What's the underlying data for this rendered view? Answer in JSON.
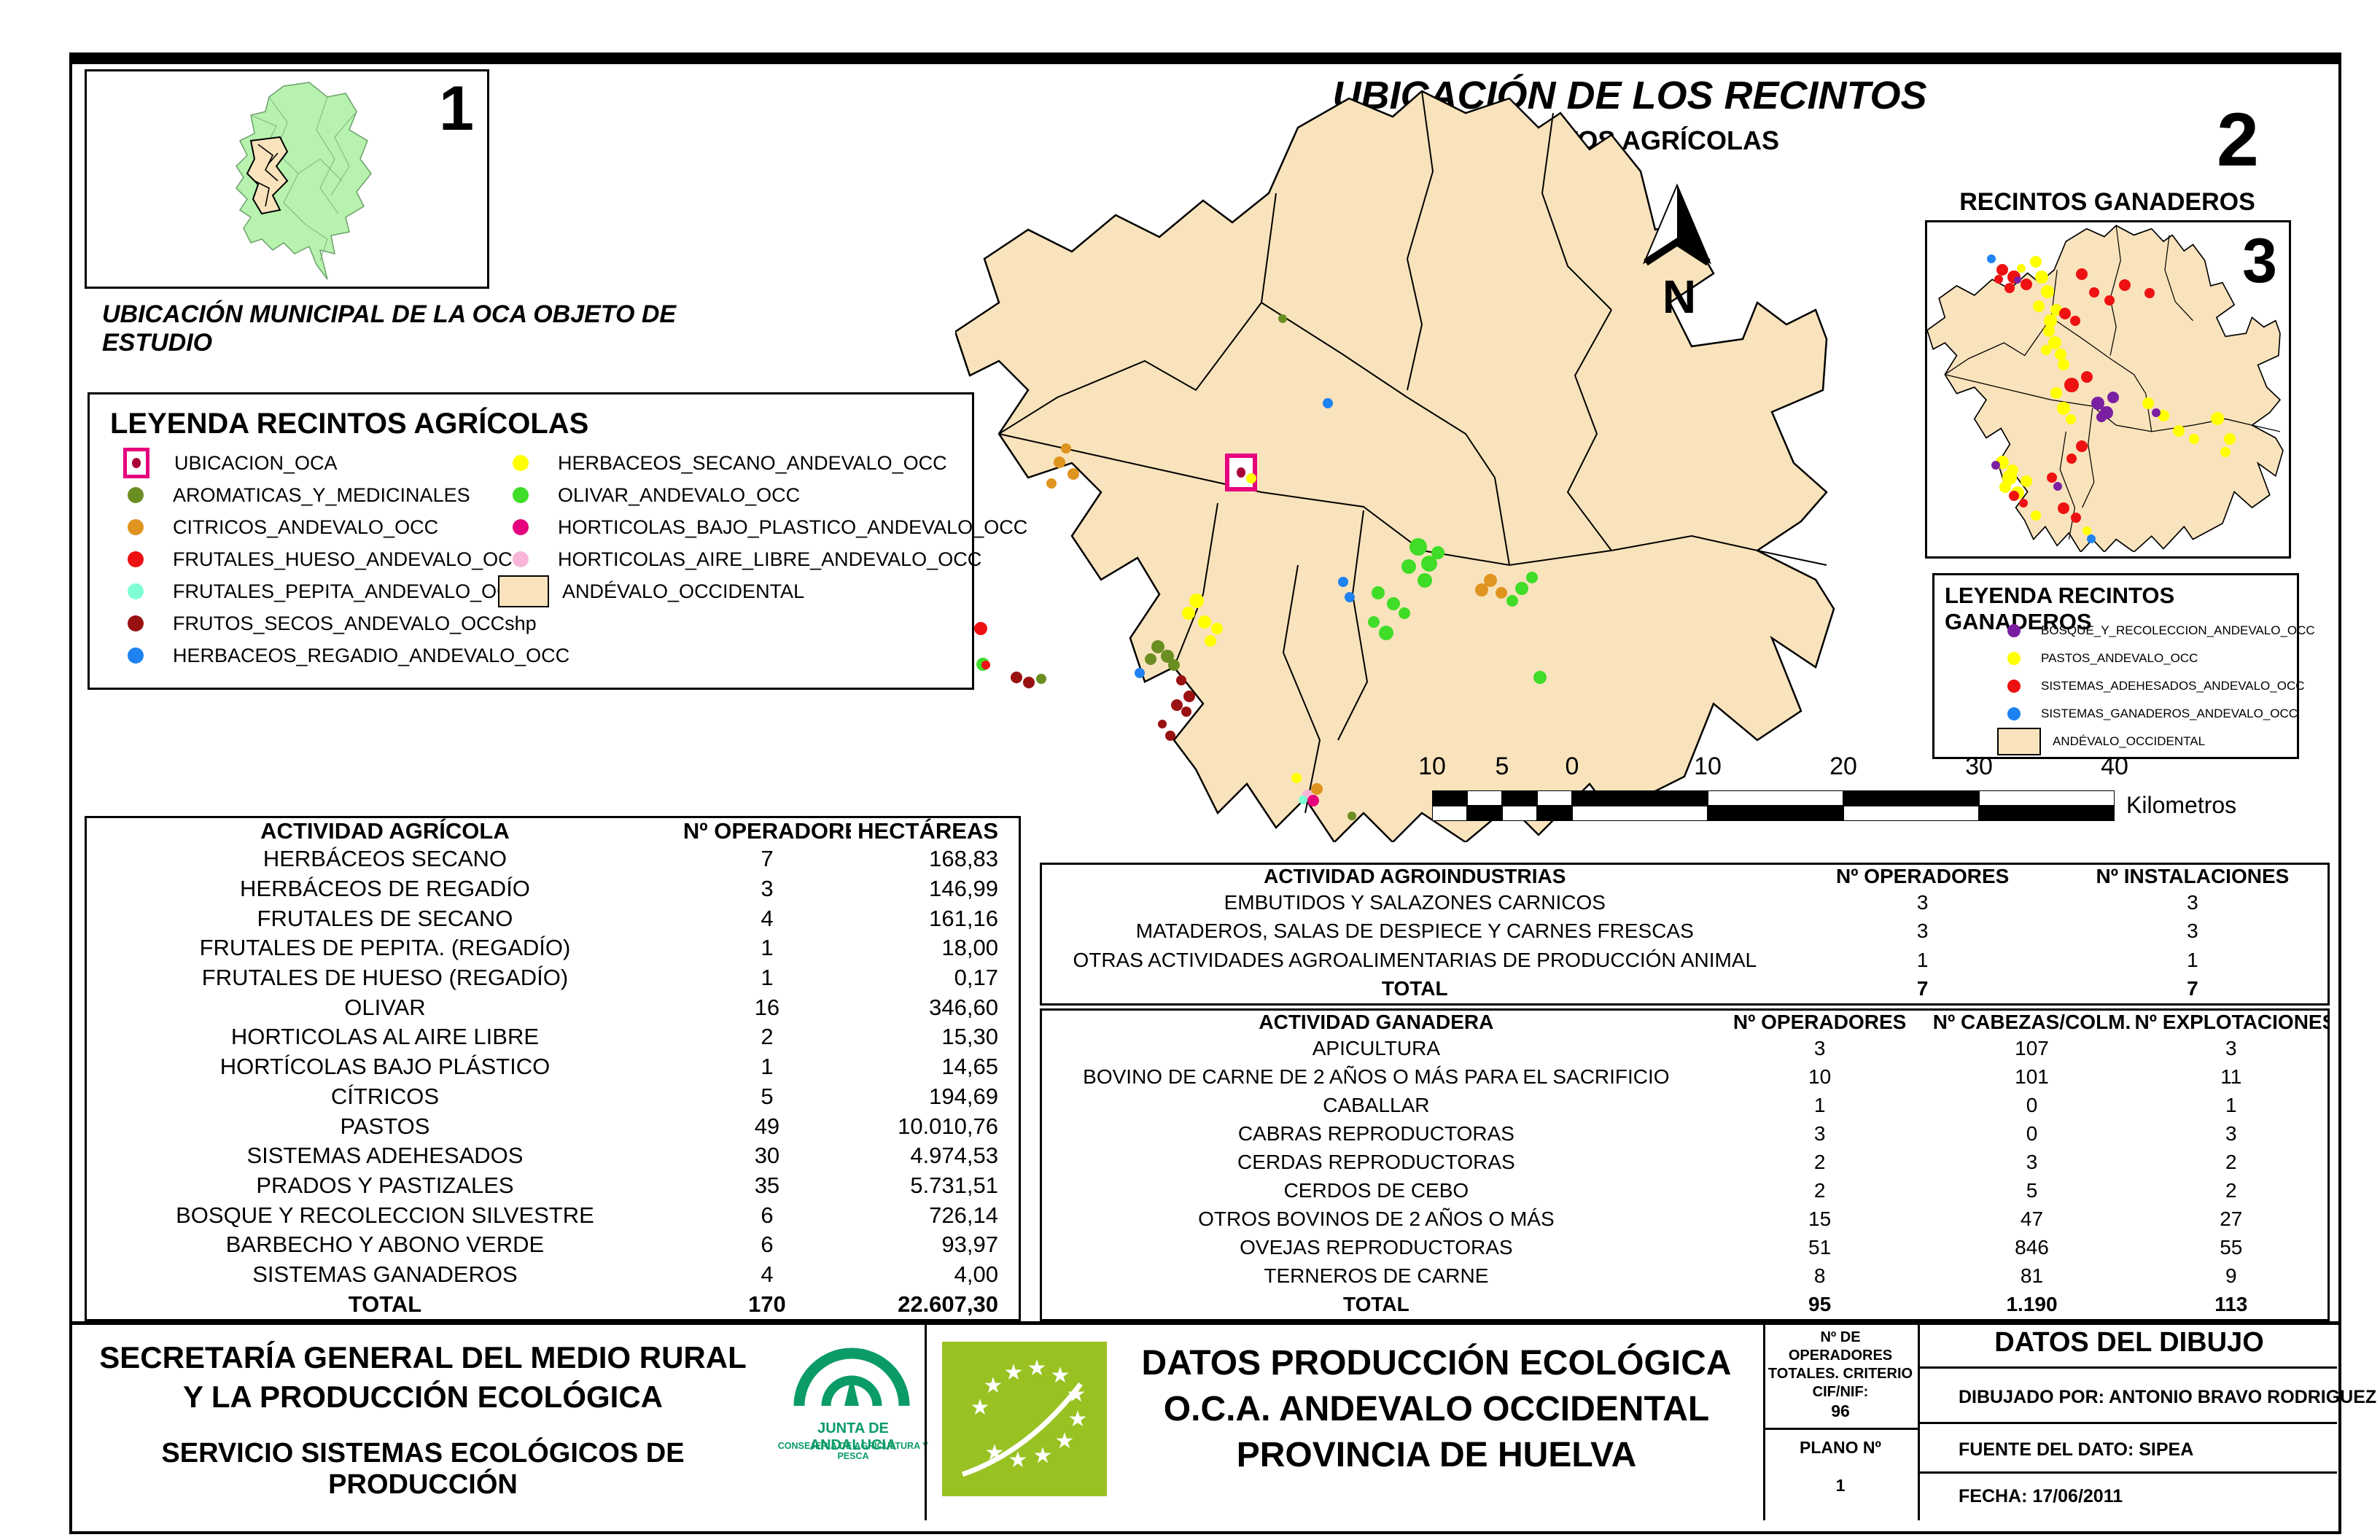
{
  "inset": {
    "numeral": "1",
    "caption": "UBICACIÓN MUNICIPAL DE LA OCA OBJETO DE ESTUDIO"
  },
  "main_map": {
    "numeral": "2",
    "title": "UBICACIÓN DE LOS RECINTOS",
    "subtitle": "RECINTOS AGRÍCOLAS",
    "north_label": "N"
  },
  "ganaderos_map": {
    "numeral": "3",
    "title": "RECINTOS GANADEROS"
  },
  "legend_agricolas": {
    "title": "LEYENDA RECINTOS AGRÍCOLAS",
    "items_left": [
      {
        "label": "UBICACION_OCA",
        "shape": "oca",
        "color": "#E6007E"
      },
      {
        "label": "AROMATICAS_Y_MEDICINALES",
        "shape": "dot",
        "color": "#6B8E23"
      },
      {
        "label": "CITRICOS_ANDEVALO_OCC",
        "shape": "dot",
        "color": "#E09420"
      },
      {
        "label": "FRUTALES_HUESO_ANDEVALO_OCC",
        "shape": "dot",
        "color": "#EE1111"
      },
      {
        "label": "FRUTALES_PEPITA_ANDEVALO_OCC",
        "shape": "dot",
        "color": "#7FFFD4"
      },
      {
        "label": "FRUTOS_SECOS_ANDEVALO_OCCshp",
        "shape": "dot",
        "color": "#991111"
      },
      {
        "label": "HERBACEOS_REGADIO_ANDEVALO_OCC",
        "shape": "dot",
        "color": "#1E82F0"
      }
    ],
    "items_right": [
      {
        "label": "HERBACEOS_SECANO_ANDEVALO_OCC",
        "shape": "dot",
        "color": "#FFFF00"
      },
      {
        "label": "OLIVAR_ANDEVALO_OCC",
        "shape": "dot",
        "color": "#3FDC28"
      },
      {
        "label": "HORTICOLAS_BAJO_PLASTICO_ANDEVALO_OCC",
        "shape": "dot",
        "color": "#E6007E"
      },
      {
        "label": "HORTICOLAS_AIRE_LIBRE_ANDEVALO_OCC",
        "shape": "dot",
        "color": "#F7B6D7"
      },
      {
        "label": "ANDÉVALO_OCCIDENTAL",
        "shape": "rect",
        "color": "#F9E3BC"
      }
    ]
  },
  "legend_ganaderos": {
    "title": "LEYENDA RECINTOS GANADEROS",
    "items": [
      {
        "label": "BOSQUE_Y_RECOLECCION_ANDEVALO_OCC",
        "shape": "dot",
        "color": "#7B1FA2"
      },
      {
        "label": "PASTOS_ANDEVALO_OCC",
        "shape": "dot",
        "color": "#FFFF00"
      },
      {
        "label": "SISTEMAS_ADEHESADOS_ANDEVALO_OCC",
        "shape": "dot",
        "color": "#EE1111"
      },
      {
        "label": "SISTEMAS_GANADEROS_ANDEVALO_OCC",
        "shape": "dot",
        "color": "#1E82F0"
      },
      {
        "label": "ANDÉVALO_OCCIDENTAL",
        "shape": "rect",
        "color": "#F9E3BC"
      }
    ]
  },
  "scalebar": {
    "labels": [
      "10",
      "5",
      "0",
      "10",
      "20",
      "30",
      "40"
    ],
    "unit": "Kilometros"
  },
  "tables": {
    "agricola": {
      "headers": [
        "ACTIVIDAD AGRÍCOLA",
        "Nº OPERADORES",
        "HECTÁREAS"
      ],
      "rows": [
        [
          "HERBÁCEOS SECANO",
          "7",
          "168,83"
        ],
        [
          "HERBÁCEOS DE REGADÍO",
          "3",
          "146,99"
        ],
        [
          "FRUTALES DE SECANO",
          "4",
          "161,16"
        ],
        [
          "FRUTALES DE PEPITA. (REGADÍO)",
          "1",
          "18,00"
        ],
        [
          "FRUTALES DE HUESO (REGADÍO)",
          "1",
          "0,17"
        ],
        [
          "OLIVAR",
          "16",
          "346,60"
        ],
        [
          "HORTICOLAS AL AIRE LIBRE",
          "2",
          "15,30"
        ],
        [
          "HORTÍCOLAS BAJO PLÁSTICO",
          "1",
          "14,65"
        ],
        [
          "CÍTRICOS",
          "5",
          "194,69"
        ],
        [
          "PASTOS",
          "49",
          "10.010,76"
        ],
        [
          "SISTEMAS ADEHESADOS",
          "30",
          "4.974,53"
        ],
        [
          "PRADOS Y PASTIZALES",
          "35",
          "5.731,51"
        ],
        [
          "BOSQUE Y RECOLECCION SILVESTRE",
          "6",
          "726,14"
        ],
        [
          "BARBECHO Y ABONO VERDE",
          "6",
          "93,97"
        ],
        [
          "SISTEMAS GANADEROS",
          "4",
          "4,00"
        ],
        [
          "TOTAL",
          "170",
          "22.607,30"
        ]
      ]
    },
    "agroindustrias": {
      "headers": [
        "ACTIVIDAD AGROINDUSTRIAS",
        "Nº OPERADORES",
        "Nº INSTALACIONES"
      ],
      "rows": [
        [
          "EMBUTIDOS Y SALAZONES CARNICOS",
          "3",
          "3"
        ],
        [
          "MATADEROS, SALAS DE DESPIECE Y CARNES FRESCAS",
          "3",
          "3"
        ],
        [
          "OTRAS ACTIVIDADES AGROALIMENTARIAS DE PRODUCCIÓN ANIMAL",
          "1",
          "1"
        ],
        [
          "TOTAL",
          "7",
          "7"
        ]
      ]
    },
    "ganadera": {
      "headers": [
        "ACTIVIDAD GANADERA",
        "Nº OPERADORES",
        "Nº CABEZAS/COLM.",
        "Nº EXPLOTACIONES"
      ],
      "rows": [
        [
          "APICULTURA",
          "3",
          "107",
          "3"
        ],
        [
          "BOVINO DE CARNE DE 2 AÑOS O MÁS PARA EL SACRIFICIO",
          "10",
          "101",
          "11"
        ],
        [
          "CABALLAR",
          "1",
          "0",
          "1"
        ],
        [
          "CABRAS REPRODUCTORAS",
          "3",
          "0",
          "3"
        ],
        [
          "CERDAS REPRODUCTORAS",
          "2",
          "3",
          "2"
        ],
        [
          "CERDOS DE CEBO",
          "2",
          "5",
          "2"
        ],
        [
          "OTROS BOVINOS DE 2 AÑOS O MÁS",
          "15",
          "47",
          "27"
        ],
        [
          "OVEJAS REPRODUCTORAS",
          "51",
          "846",
          "55"
        ],
        [
          "TERNEROS DE CARNE",
          "8",
          "81",
          "9"
        ],
        [
          "TOTAL",
          "95",
          "1.190",
          "113"
        ]
      ]
    }
  },
  "footer": {
    "org_line1": "SECRETARÍA GENERAL DEL MEDIO RURAL",
    "org_line2": "Y LA PRODUCCIÓN ECOLÓGICA",
    "org_line3": "SERVICIO SISTEMAS ECOLÓGICOS DE PRODUCCIÓN",
    "junta_name": "JUNTA DE ANDALUCIA",
    "junta_dept": "CONSEJERÍA DE AGRICULTURA Y PESCA",
    "center_line1": "DATOS PRODUCCIÓN ECOLÓGICA",
    "center_line2": "O.C.A. ANDEVALO OCCIDENTAL",
    "center_line3": "PROVINCIA DE HUELVA",
    "operators_label": "Nº DE OPERADORES TOTALES. CRITERIO CIF/NIF:",
    "operators_value": "96",
    "plano_label": "PLANO Nº",
    "plano_value": "1",
    "dibujo_title": "DATOS DEL DIBUJO",
    "dibujado": "DIBUJADO POR: ANTONIO BRAVO RODRIGUEZ",
    "fuente": "FUENTE DEL DATO: SIPEA",
    "fecha": "FECHA: 17/06/2011"
  },
  "colors": {
    "region_fill": "#F9E3BC",
    "inset_green": "#B7F2AE",
    "junta_green": "#0B9B67",
    "eu_logo_green": "#98C222",
    "oca_pink": "#E6007E"
  },
  "map_dots": {
    "main": [
      [
        1453,
        634,
        8,
        "#E09420"
      ],
      [
        1472,
        650,
        8,
        "#E09420"
      ],
      [
        1442,
        663,
        7,
        "#E09420"
      ],
      [
        1462,
        615,
        7,
        "#E09420"
      ],
      [
        1759,
        437,
        6,
        "#6B8E23"
      ],
      [
        1821,
        553,
        7,
        "#1E82F0"
      ],
      [
        1716,
        656,
        7,
        "#FFFF00"
      ],
      [
        1945,
        750,
        12,
        "#3FDC28"
      ],
      [
        1960,
        773,
        11,
        "#3FDC28"
      ],
      [
        1932,
        777,
        10,
        "#3FDC28"
      ],
      [
        1954,
        796,
        10,
        "#3FDC28"
      ],
      [
        1972,
        758,
        9,
        "#3FDC28"
      ],
      [
        1890,
        813,
        9,
        "#3FDC28"
      ],
      [
        1911,
        828,
        9,
        "#3FDC28"
      ],
      [
        1926,
        841,
        8,
        "#3FDC28"
      ],
      [
        1901,
        868,
        10,
        "#3FDC28"
      ],
      [
        1884,
        853,
        8,
        "#3FDC28"
      ],
      [
        2087,
        807,
        9,
        "#3FDC28"
      ],
      [
        2101,
        792,
        8,
        "#3FDC28"
      ],
      [
        2112,
        929,
        9,
        "#3FDC28"
      ],
      [
        2032,
        809,
        9,
        "#E09420"
      ],
      [
        2044,
        796,
        9,
        "#E09420"
      ],
      [
        2059,
        813,
        8,
        "#E09420"
      ],
      [
        2074,
        824,
        8,
        "#3FDC28"
      ],
      [
        1842,
        798,
        7,
        "#1E82F0"
      ],
      [
        1851,
        819,
        7,
        "#1E82F0"
      ],
      [
        1641,
        824,
        10,
        "#FFFF00"
      ],
      [
        1630,
        841,
        9,
        "#FFFF00"
      ],
      [
        1652,
        853,
        9,
        "#FFFF00"
      ],
      [
        1669,
        862,
        8,
        "#FFFF00"
      ],
      [
        1660,
        879,
        8,
        "#FFFF00"
      ],
      [
        1588,
        887,
        9,
        "#6B8E23"
      ],
      [
        1601,
        900,
        9,
        "#6B8E23"
      ],
      [
        1578,
        904,
        8,
        "#6B8E23"
      ],
      [
        1610,
        912,
        8,
        "#6B8E23"
      ],
      [
        1563,
        923,
        7,
        "#1E82F0"
      ],
      [
        1620,
        933,
        7,
        "#991111"
      ],
      [
        1631,
        955,
        8,
        "#991111"
      ],
      [
        1614,
        967,
        8,
        "#991111"
      ],
      [
        1627,
        976,
        7,
        "#991111"
      ],
      [
        1605,
        1009,
        7,
        "#991111"
      ],
      [
        1594,
        993,
        6,
        "#991111"
      ],
      [
        1394,
        929,
        8,
        "#991111"
      ],
      [
        1411,
        936,
        8,
        "#991111"
      ],
      [
        1428,
        931,
        7,
        "#6B8E23"
      ],
      [
        1345,
        862,
        9,
        "#EE1111"
      ],
      [
        1348,
        911,
        9,
        "#3FDC28"
      ],
      [
        1352,
        912,
        6,
        "#EE1111"
      ],
      [
        1806,
        1082,
        8,
        "#E09420"
      ],
      [
        1793,
        1090,
        7,
        "#F7B6D7"
      ],
      [
        1801,
        1098,
        8,
        "#E6007E"
      ],
      [
        1787,
        1097,
        6,
        "#7FFFD4"
      ],
      [
        1854,
        1119,
        6,
        "#6B8E23"
      ],
      [
        1778,
        1067,
        7,
        "#FFFF00"
      ]
    ],
    "ganaderos": [
      [
        2731,
        355,
        6,
        "#1E82F0"
      ],
      [
        2746,
        370,
        8,
        "#EE1111"
      ],
      [
        2762,
        380,
        9,
        "#EE1111"
      ],
      [
        2779,
        390,
        8,
        "#EE1111"
      ],
      [
        2756,
        395,
        7,
        "#EE1111"
      ],
      [
        2741,
        383,
        6,
        "#EE1111"
      ],
      [
        2767,
        384,
        5,
        "#7B1FA2"
      ],
      [
        2772,
        368,
        6,
        "#FFFF00"
      ],
      [
        2792,
        359,
        8,
        "#FFFF00"
      ],
      [
        2800,
        380,
        9,
        "#FFFF00"
      ],
      [
        2808,
        400,
        9,
        "#FFFF00"
      ],
      [
        2796,
        420,
        8,
        "#FFFF00"
      ],
      [
        2812,
        440,
        9,
        "#FFFF00"
      ],
      [
        2820,
        425,
        8,
        "#FFFF00"
      ],
      [
        2855,
        376,
        8,
        "#EE1111"
      ],
      [
        2872,
        401,
        7,
        "#EE1111"
      ],
      [
        2893,
        412,
        7,
        "#EE1111"
      ],
      [
        2914,
        391,
        8,
        "#EE1111"
      ],
      [
        2948,
        402,
        7,
        "#EE1111"
      ],
      [
        2832,
        430,
        8,
        "#EE1111"
      ],
      [
        2846,
        440,
        7,
        "#EE1111"
      ],
      [
        2810,
        454,
        8,
        "#FFFF00"
      ],
      [
        2818,
        470,
        9,
        "#FFFF00"
      ],
      [
        2826,
        486,
        8,
        "#FFFF00"
      ],
      [
        2806,
        480,
        7,
        "#FFFF00"
      ],
      [
        2830,
        500,
        8,
        "#FFFF00"
      ],
      [
        2841,
        528,
        10,
        "#EE1111"
      ],
      [
        2862,
        517,
        8,
        "#EE1111"
      ],
      [
        2820,
        539,
        8,
        "#FFFF00"
      ],
      [
        2830,
        560,
        9,
        "#FFFF00"
      ],
      [
        2840,
        575,
        7,
        "#FFFF00"
      ],
      [
        2877,
        553,
        9,
        "#7B1FA2"
      ],
      [
        2889,
        566,
        9,
        "#7B1FA2"
      ],
      [
        2898,
        545,
        8,
        "#7B1FA2"
      ],
      [
        2882,
        572,
        7,
        "#7B1FA2"
      ],
      [
        2946,
        553,
        8,
        "#FFFF00"
      ],
      [
        2967,
        570,
        8,
        "#FFFF00"
      ],
      [
        2988,
        591,
        8,
        "#FFFF00"
      ],
      [
        3009,
        602,
        7,
        "#FFFF00"
      ],
      [
        2957,
        566,
        6,
        "#7B1FA2"
      ],
      [
        3041,
        574,
        9,
        "#FFFF00"
      ],
      [
        3058,
        602,
        8,
        "#FFFF00"
      ],
      [
        3052,
        620,
        7,
        "#FFFF00"
      ],
      [
        2855,
        612,
        8,
        "#EE1111"
      ],
      [
        2841,
        629,
        7,
        "#EE1111"
      ],
      [
        2746,
        634,
        9,
        "#FFFF00"
      ],
      [
        2756,
        655,
        10,
        "#FFFF00"
      ],
      [
        2767,
        676,
        9,
        "#FFFF00"
      ],
      [
        2779,
        660,
        8,
        "#FFFF00"
      ],
      [
        2750,
        668,
        8,
        "#FFFF00"
      ],
      [
        2760,
        645,
        8,
        "#FFFF00"
      ],
      [
        2737,
        638,
        6,
        "#7B1FA2"
      ],
      [
        2762,
        680,
        7,
        "#EE1111"
      ],
      [
        2775,
        690,
        6,
        "#EE1111"
      ],
      [
        2814,
        655,
        7,
        "#EE1111"
      ],
      [
        2822,
        667,
        6,
        "#7B1FA2"
      ],
      [
        2830,
        697,
        8,
        "#EE1111"
      ],
      [
        2847,
        710,
        7,
        "#EE1111"
      ],
      [
        2792,
        707,
        7,
        "#FFFF00"
      ],
      [
        2862,
        728,
        6,
        "#FFFF00"
      ],
      [
        2868,
        739,
        6,
        "#1E82F0"
      ]
    ]
  }
}
